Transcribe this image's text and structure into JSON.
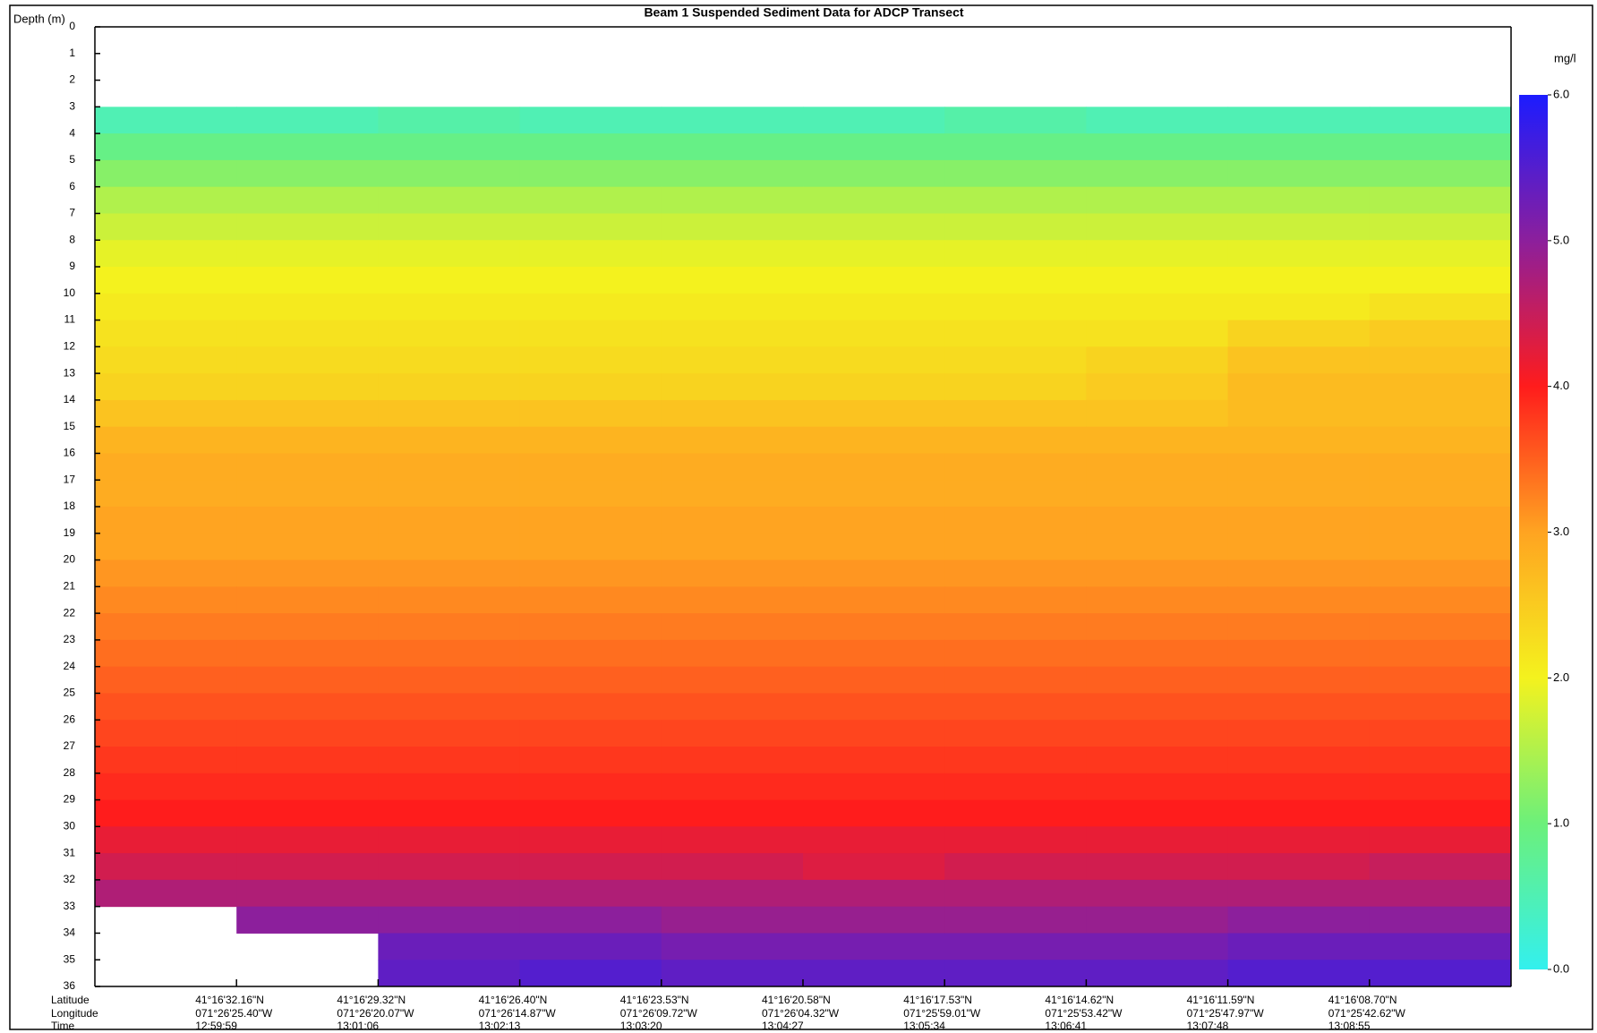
{
  "chart_data": {
    "type": "heatmap",
    "title": "Beam 1 Suspended Sediment Data for ADCP Transect",
    "y_label": "Depth (m)",
    "colorbar_label": "mg/l",
    "x_row_labels": [
      "Latitude",
      "Longitude",
      "Time"
    ],
    "xlim": [
      0,
      10
    ],
    "xticks": [
      {
        "value": 1,
        "latitude": "41°16'32.16\"N",
        "longitude": "071°26'25.40\"W",
        "time": "12:59:59"
      },
      {
        "value": 2,
        "latitude": "41°16'29.32\"N",
        "longitude": "071°26'20.07\"W",
        "time": "13:01:06"
      },
      {
        "value": 3,
        "latitude": "41°16'26.40\"N",
        "longitude": "071°26'14.87\"W",
        "time": "13:02:13"
      },
      {
        "value": 4,
        "latitude": "41°16'23.53\"N",
        "longitude": "071°26'09.72\"W",
        "time": "13:03:20"
      },
      {
        "value": 5,
        "latitude": "41°16'20.58\"N",
        "longitude": "071°26'04.32\"W",
        "time": "13:04:27"
      },
      {
        "value": 6,
        "latitude": "41°16'17.53\"N",
        "longitude": "071°25'59.01\"W",
        "time": "13:05:34"
      },
      {
        "value": 7,
        "latitude": "41°16'14.62\"N",
        "longitude": "071°25'53.42\"W",
        "time": "13:06:41"
      },
      {
        "value": 8,
        "latitude": "41°16'11.59\"N",
        "longitude": "071°25'47.97\"W",
        "time": "13:07:48"
      },
      {
        "value": 9,
        "latitude": "41°16'08.70\"N",
        "longitude": "071°25'42.62\"W",
        "time": "13:08:55"
      }
    ],
    "ylim": [
      0,
      36
    ],
    "y_inverted": true,
    "yticks": [
      0,
      1,
      2,
      3,
      4,
      5,
      6,
      7,
      8,
      9,
      10,
      11,
      12,
      13,
      14,
      15,
      16,
      17,
      18,
      19,
      20,
      21,
      22,
      23,
      24,
      25,
      26,
      27,
      28,
      29,
      30,
      31,
      32,
      33,
      34,
      35,
      36
    ],
    "x": [
      0.5,
      1.5,
      2.5,
      3.5,
      4.5,
      5.5,
      6.5,
      7.5,
      8.5,
      9.5
    ],
    "y": [
      3.5,
      4.5,
      5.5,
      6.5,
      7.5,
      8.5,
      9.5,
      10.5,
      11.5,
      12.5,
      13.5,
      14.5,
      15.5,
      16.5,
      17.5,
      18.5,
      19.5,
      20.5,
      21.5,
      22.5,
      23.5,
      24.5,
      25.5,
      26.5,
      27.5,
      28.5,
      29.5,
      30.5,
      31.5,
      32.5,
      33.5,
      34.5,
      35.5
    ],
    "z": [
      [
        0.5,
        0.5,
        0.6,
        0.5,
        0.5,
        0.5,
        0.6,
        0.5,
        0.5,
        0.5
      ],
      [
        0.9,
        0.9,
        0.9,
        0.9,
        0.9,
        0.9,
        0.9,
        0.9,
        0.9,
        0.9
      ],
      [
        1.2,
        1.2,
        1.2,
        1.2,
        1.2,
        1.2,
        1.2,
        1.2,
        1.2,
        1.2
      ],
      [
        1.5,
        1.5,
        1.5,
        1.5,
        1.5,
        1.5,
        1.5,
        1.5,
        1.5,
        1.5
      ],
      [
        1.7,
        1.7,
        1.7,
        1.7,
        1.7,
        1.7,
        1.7,
        1.7,
        1.7,
        1.7
      ],
      [
        1.9,
        1.9,
        1.9,
        1.9,
        1.9,
        1.9,
        1.9,
        1.9,
        1.9,
        1.9
      ],
      [
        2.0,
        2.0,
        2.0,
        2.0,
        2.0,
        2.0,
        2.0,
        2.0,
        2.0,
        2.0
      ],
      [
        2.1,
        2.1,
        2.1,
        2.1,
        2.1,
        2.1,
        2.1,
        2.1,
        2.1,
        2.2
      ],
      [
        2.2,
        2.2,
        2.2,
        2.2,
        2.2,
        2.2,
        2.2,
        2.2,
        2.4,
        2.5
      ],
      [
        2.3,
        2.3,
        2.3,
        2.3,
        2.3,
        2.3,
        2.3,
        2.4,
        2.6,
        2.6
      ],
      [
        2.4,
        2.4,
        2.4,
        2.4,
        2.4,
        2.4,
        2.4,
        2.5,
        2.7,
        2.7
      ],
      [
        2.6,
        2.6,
        2.6,
        2.6,
        2.6,
        2.6,
        2.6,
        2.6,
        2.7,
        2.7
      ],
      [
        2.8,
        2.8,
        2.8,
        2.8,
        2.8,
        2.8,
        2.8,
        2.8,
        2.8,
        2.8
      ],
      [
        2.9,
        2.9,
        2.9,
        2.9,
        2.9,
        2.9,
        2.9,
        2.9,
        2.9,
        2.9
      ],
      [
        2.9,
        2.9,
        2.9,
        2.9,
        2.9,
        2.9,
        2.9,
        2.9,
        2.9,
        2.9
      ],
      [
        3.0,
        3.0,
        3.0,
        3.0,
        3.0,
        3.0,
        3.0,
        3.0,
        3.0,
        3.0
      ],
      [
        3.0,
        3.0,
        3.0,
        3.0,
        3.0,
        3.0,
        3.0,
        3.0,
        3.0,
        3.0
      ],
      [
        3.1,
        3.1,
        3.1,
        3.1,
        3.1,
        3.1,
        3.1,
        3.1,
        3.1,
        3.1
      ],
      [
        3.2,
        3.2,
        3.2,
        3.2,
        3.2,
        3.2,
        3.2,
        3.2,
        3.2,
        3.2
      ],
      [
        3.3,
        3.3,
        3.3,
        3.3,
        3.3,
        3.3,
        3.3,
        3.3,
        3.3,
        3.3
      ],
      [
        3.4,
        3.4,
        3.4,
        3.4,
        3.4,
        3.4,
        3.4,
        3.4,
        3.4,
        3.4
      ],
      [
        3.5,
        3.5,
        3.5,
        3.5,
        3.5,
        3.5,
        3.5,
        3.5,
        3.5,
        3.5
      ],
      [
        3.6,
        3.6,
        3.6,
        3.6,
        3.6,
        3.6,
        3.6,
        3.6,
        3.6,
        3.6
      ],
      [
        3.7,
        3.7,
        3.7,
        3.7,
        3.7,
        3.7,
        3.7,
        3.7,
        3.7,
        3.7
      ],
      [
        3.8,
        3.8,
        3.8,
        3.8,
        3.8,
        3.8,
        3.8,
        3.8,
        3.8,
        3.8
      ],
      [
        3.9,
        3.9,
        3.9,
        3.9,
        3.9,
        3.9,
        3.9,
        3.9,
        3.9,
        3.9
      ],
      [
        4.0,
        4.0,
        4.0,
        4.0,
        4.0,
        4.0,
        4.0,
        4.0,
        4.0,
        4.0
      ],
      [
        4.2,
        4.2,
        4.2,
        4.2,
        4.2,
        4.2,
        4.2,
        4.2,
        4.2,
        4.2
      ],
      [
        4.4,
        4.4,
        4.4,
        4.4,
        4.4,
        4.3,
        4.4,
        4.4,
        4.4,
        4.5
      ],
      [
        4.7,
        4.7,
        4.7,
        4.7,
        4.7,
        4.7,
        4.7,
        4.7,
        4.7,
        4.7
      ],
      [
        null,
        5.0,
        5.0,
        5.0,
        4.9,
        4.9,
        4.9,
        4.9,
        5.0,
        5.0
      ],
      [
        null,
        null,
        5.3,
        5.3,
        5.2,
        5.2,
        5.2,
        5.2,
        5.3,
        5.3
      ],
      [
        null,
        null,
        5.4,
        5.5,
        5.4,
        5.4,
        5.4,
        5.4,
        5.5,
        5.5
      ]
    ],
    "zlim": [
      0,
      6
    ],
    "colorscale": [
      [
        0,
        "#33f0ee"
      ],
      [
        1,
        "#6cf07a"
      ],
      [
        2,
        "#f4f21e"
      ],
      [
        3,
        "#ffa421"
      ],
      [
        4,
        "#ff1c1c"
      ],
      [
        5,
        "#8c1f9c"
      ],
      [
        6,
        "#1c1cff"
      ]
    ],
    "colorbar_ticks": [
      {
        "value": 0,
        "label": "0.0"
      },
      {
        "value": 1,
        "label": "1.0"
      },
      {
        "value": 2,
        "label": "2.0"
      },
      {
        "value": 3,
        "label": "3.0"
      },
      {
        "value": 4,
        "label": "4.0"
      },
      {
        "value": 5,
        "label": "5.0"
      },
      {
        "value": 6,
        "label": "6.0"
      }
    ]
  }
}
